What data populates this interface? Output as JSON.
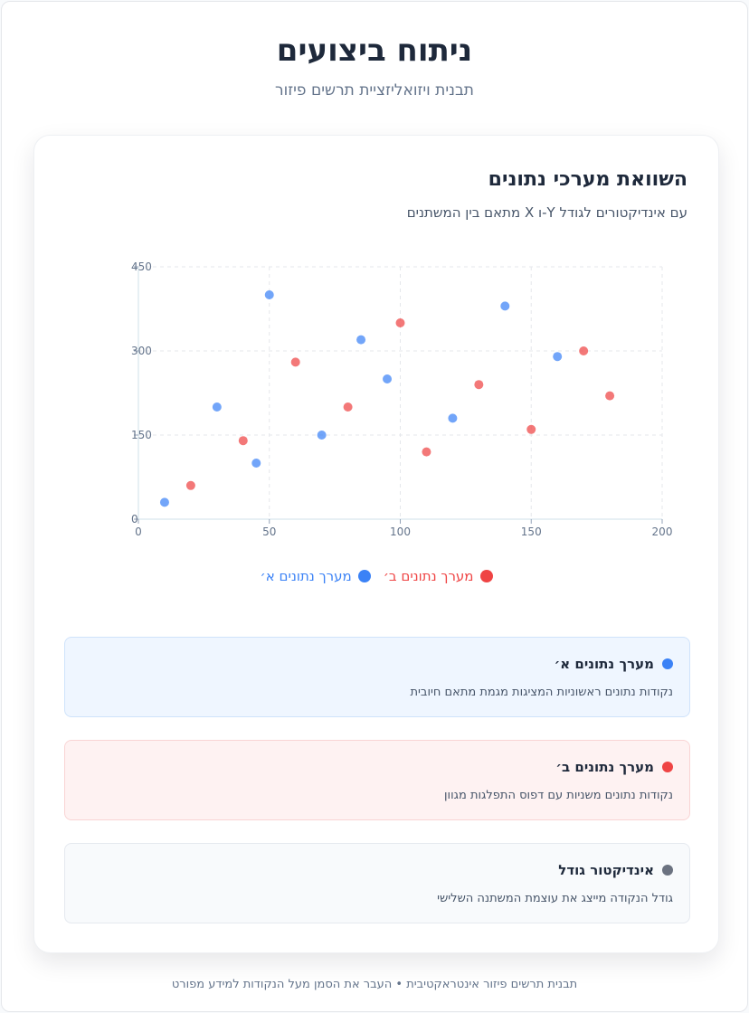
{
  "header": {
    "title": "ניתוח ביצועים",
    "subtitle": "תבנית ויזואליזציית תרשים פיזור"
  },
  "card": {
    "title": "השוואת מערכי נתונים",
    "subtitle": "עם אינדיקטורים לגודל Y-ו X מתאם בין המשתנים"
  },
  "colors": {
    "series_a": "#3b82f6",
    "series_b": "#ef4444",
    "size_indicator": "#6b7280"
  },
  "chart_data": {
    "type": "scatter",
    "title": "",
    "xlabel": "",
    "ylabel": "",
    "xlim": [
      0,
      200
    ],
    "ylim": [
      0,
      450
    ],
    "x_ticks": [
      0,
      50,
      100,
      150,
      200
    ],
    "y_ticks": [
      0,
      150,
      300,
      450
    ],
    "grid": true,
    "legend_position": "bottom-center",
    "series": [
      {
        "name": "מערך נתונים א׳",
        "color": "#3b82f6",
        "points": [
          [
            10,
            30
          ],
          [
            30,
            200
          ],
          [
            45,
            100
          ],
          [
            50,
            400
          ],
          [
            70,
            150
          ],
          [
            85,
            320
          ],
          [
            95,
            250
          ],
          [
            120,
            180
          ],
          [
            140,
            380
          ],
          [
            160,
            290
          ]
        ]
      },
      {
        "name": "מערך נתונים ב׳",
        "color": "#ef4444",
        "points": [
          [
            20,
            60
          ],
          [
            40,
            140
          ],
          [
            60,
            280
          ],
          [
            80,
            200
          ],
          [
            100,
            350
          ],
          [
            110,
            120
          ],
          [
            130,
            240
          ],
          [
            150,
            160
          ],
          [
            170,
            300
          ],
          [
            180,
            220
          ]
        ]
      }
    ]
  },
  "info": [
    {
      "title": "מערך נתונים א׳",
      "description": "נקודות נתונים ראשוניות המציגות מגמת מתאם חיובית"
    },
    {
      "title": "מערך נתונים ב׳",
      "description": "נקודות נתונים משניות עם דפוס התפלגות מגוון"
    },
    {
      "title": "אינדיקטור גודל",
      "description": "גודל הנקודה מייצג את עוצמת המשתנה השלישי"
    }
  ],
  "footer": {
    "text": "תבנית תרשים פיזור אינטראקטיבית • העבר את הסמן מעל הנקודות למידע מפורט"
  }
}
